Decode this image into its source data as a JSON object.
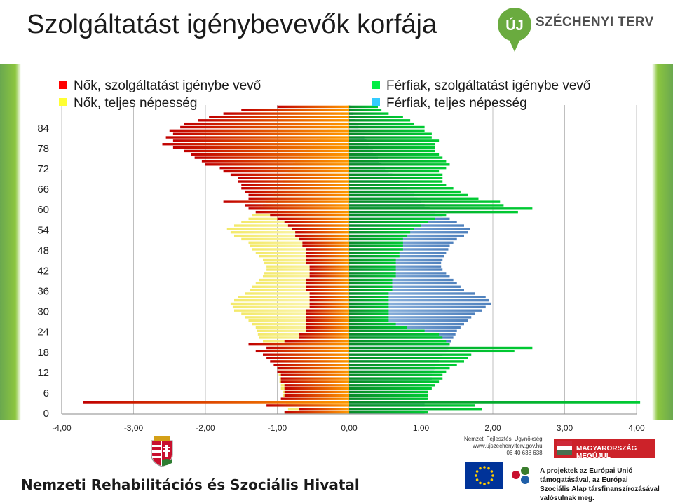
{
  "title": "Szolgáltatást igénybevevők korfája",
  "logo": {
    "badge": "ÚJ",
    "text": "SZÉCHENYI TERV"
  },
  "footer": {
    "agency": "Nemzeti Rehabilitációs és Szociális Hivatal",
    "nfu_lines": [
      "Nemzeti Fejlesztési Ügynökség",
      "www.ujszechenyiterv.gov.hu",
      "06 40 638 638"
    ],
    "banner": "MAGYARORSZÁG MEGÚJUL",
    "eu_lines": [
      "A projektek az Európai Unió támogatásával, az Európai",
      "Szociális Alap társfinanszírozásával valósulnak meg."
    ]
  },
  "colors": {
    "women_served": "#c00000",
    "women_served_grad": "#ff9900",
    "women_total": "#f4f080",
    "men_served": "#00cc33",
    "men_total": "#4f81bd",
    "background_frame": "#8cc63f"
  },
  "chart_data": {
    "type": "bar",
    "orientation": "horizontal",
    "layout": "population pyramid",
    "y_ages": [
      0,
      1,
      2,
      3,
      4,
      5,
      6,
      7,
      8,
      9,
      10,
      11,
      12,
      13,
      14,
      15,
      16,
      17,
      18,
      19,
      20,
      21,
      22,
      23,
      24,
      25,
      26,
      27,
      28,
      29,
      30,
      31,
      32,
      33,
      34,
      35,
      36,
      37,
      38,
      39,
      40,
      41,
      42,
      43,
      44,
      45,
      46,
      47,
      48,
      49,
      50,
      51,
      52,
      53,
      54,
      55,
      56,
      57,
      58,
      59,
      60,
      61,
      62,
      63,
      64,
      65,
      66,
      67,
      68,
      69,
      70,
      71,
      72,
      73,
      74,
      75,
      76,
      77,
      78,
      79,
      80,
      81,
      82,
      83,
      84,
      85,
      86,
      87,
      88,
      89,
      90
    ],
    "y_tick_labels": [
      "0",
      "6",
      "12",
      "18",
      "24",
      "30",
      "36",
      "42",
      "48",
      "54",
      "60",
      "66",
      "72",
      "78",
      "84"
    ],
    "x_tick_labels": [
      "-4,00",
      "-3,00",
      "-2,00",
      "-1,00",
      "0,00",
      "1,00",
      "2,00",
      "3,00",
      "4,00"
    ],
    "xlim": [
      -4,
      4
    ],
    "ylim": [
      0,
      90
    ],
    "series": [
      {
        "name": "Nők, szolgáltatást igénybe vevő",
        "side": "left",
        "values": [
          0.9,
          0.7,
          1.15,
          3.7,
          0.95,
          0.9,
          0.9,
          0.9,
          0.9,
          0.95,
          0.95,
          0.95,
          1.0,
          1.0,
          1.05,
          1.1,
          1.15,
          1.2,
          1.3,
          1.15,
          1.4,
          0.9,
          0.7,
          0.7,
          0.6,
          0.6,
          0.6,
          0.6,
          0.6,
          0.6,
          0.6,
          0.55,
          0.55,
          0.55,
          0.55,
          0.55,
          0.6,
          0.6,
          0.6,
          0.6,
          0.55,
          0.55,
          0.55,
          0.55,
          0.6,
          0.6,
          0.6,
          0.6,
          0.6,
          0.65,
          0.65,
          0.7,
          0.75,
          0.75,
          0.8,
          0.85,
          0.9,
          1.0,
          1.1,
          1.3,
          1.4,
          1.45,
          1.75,
          1.4,
          1.4,
          1.45,
          1.5,
          1.5,
          1.55,
          1.55,
          1.65,
          1.75,
          1.8,
          2.0,
          2.05,
          2.15,
          2.2,
          2.3,
          2.45,
          2.6,
          2.45,
          2.55,
          2.45,
          2.5,
          2.35,
          2.3,
          2.1,
          1.95,
          1.75,
          1.5,
          1.0
        ]
      },
      {
        "name": "Nők, teljes népesség",
        "side": "left",
        "values": [
          0.9,
          0.85,
          0.88,
          0.88,
          0.9,
          0.92,
          0.92,
          0.95,
          0.95,
          0.97,
          0.97,
          0.98,
          1.0,
          1.0,
          1.02,
          1.05,
          1.05,
          1.08,
          1.1,
          1.12,
          1.15,
          1.2,
          1.25,
          1.27,
          1.28,
          1.3,
          1.35,
          1.4,
          1.45,
          1.5,
          1.6,
          1.62,
          1.65,
          1.6,
          1.55,
          1.45,
          1.38,
          1.35,
          1.3,
          1.25,
          1.2,
          1.18,
          1.15,
          1.15,
          1.18,
          1.2,
          1.25,
          1.3,
          1.35,
          1.38,
          1.4,
          1.5,
          1.6,
          1.65,
          1.7,
          1.6,
          1.5,
          1.4,
          1.35,
          1.3,
          1.25,
          1.2,
          1.15,
          1.1,
          1.05,
          1.0,
          0.98,
          0.95,
          0.92,
          0.9,
          0.88,
          0.85,
          0.8,
          0.78,
          0.75,
          0.7,
          0.65,
          0.6,
          0.55,
          0.5,
          0.45,
          0.4,
          0.35,
          0.3,
          0.25,
          0.2,
          0.17,
          0.14,
          0.11,
          0.08,
          0.05
        ]
      },
      {
        "name": "Férfiak, szolgáltatást igénybe vevő",
        "side": "right",
        "values": [
          1.1,
          1.85,
          1.75,
          4.05,
          1.1,
          1.1,
          1.1,
          1.15,
          1.2,
          1.25,
          1.3,
          1.3,
          1.35,
          1.4,
          1.5,
          1.6,
          1.65,
          1.7,
          2.3,
          2.55,
          1.4,
          1.35,
          1.3,
          1.25,
          1.05,
          0.8,
          0.65,
          0.55,
          0.55,
          0.55,
          0.55,
          0.55,
          0.55,
          0.55,
          0.55,
          0.55,
          0.6,
          0.6,
          0.6,
          0.6,
          0.65,
          0.65,
          0.65,
          0.65,
          0.65,
          0.65,
          0.7,
          0.7,
          0.75,
          0.75,
          0.75,
          0.75,
          0.8,
          0.85,
          0.9,
          1.0,
          1.1,
          1.2,
          1.35,
          2.35,
          2.55,
          2.15,
          2.1,
          1.8,
          1.65,
          1.55,
          1.45,
          1.35,
          1.3,
          1.3,
          1.3,
          1.25,
          1.35,
          1.4,
          1.35,
          1.3,
          1.25,
          1.2,
          1.2,
          1.2,
          1.25,
          1.15,
          1.15,
          1.05,
          1.05,
          0.9,
          0.85,
          0.75,
          0.55,
          0.45,
          0.4
        ]
      },
      {
        "name": "Férfiak, teljes népesség",
        "side": "right",
        "values": [
          1.05,
          1.02,
          1.05,
          1.05,
          1.08,
          1.08,
          1.1,
          1.1,
          1.12,
          1.12,
          1.15,
          1.15,
          1.18,
          1.2,
          1.22,
          1.25,
          1.27,
          1.3,
          1.35,
          1.38,
          1.4,
          1.42,
          1.45,
          1.48,
          1.5,
          1.55,
          1.6,
          1.65,
          1.7,
          1.75,
          1.85,
          1.9,
          1.98,
          1.95,
          1.9,
          1.75,
          1.6,
          1.55,
          1.5,
          1.45,
          1.4,
          1.35,
          1.3,
          1.28,
          1.28,
          1.3,
          1.32,
          1.35,
          1.38,
          1.4,
          1.45,
          1.5,
          1.6,
          1.65,
          1.68,
          1.6,
          1.5,
          1.4,
          1.3,
          1.2,
          1.12,
          1.05,
          1.0,
          0.95,
          0.9,
          0.85,
          0.8,
          0.75,
          0.7,
          0.65,
          0.6,
          0.55,
          0.5,
          0.45,
          0.42,
          0.4,
          0.37,
          0.33,
          0.3,
          0.27,
          0.24,
          0.21,
          0.18,
          0.15,
          0.13,
          0.1,
          0.08,
          0.06,
          0.05,
          0.04,
          0.03
        ]
      }
    ],
    "grid": "vertical",
    "legend": "top"
  }
}
